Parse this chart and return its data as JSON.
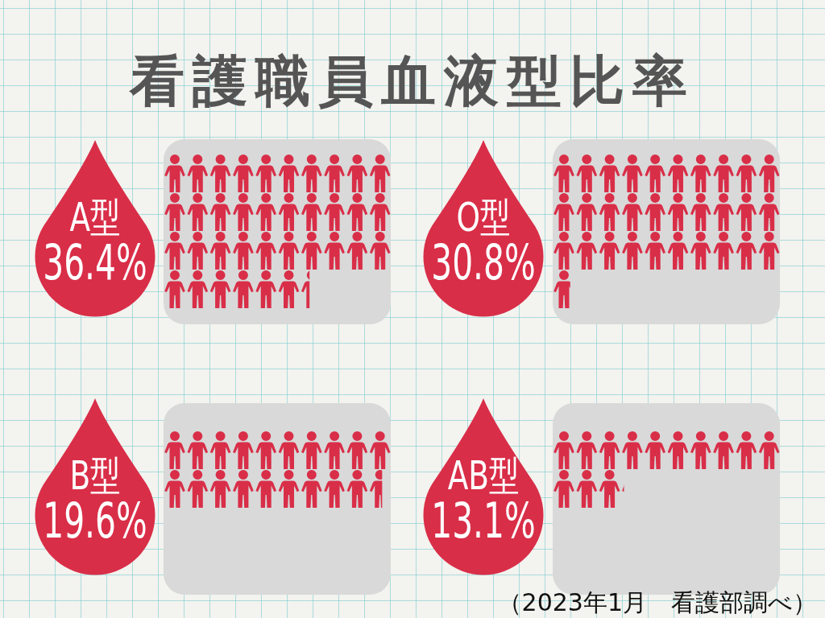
{
  "chart_data": {
    "type": "other",
    "title": "看護職員血液型比率",
    "categories": [
      "A型",
      "O型",
      "B型",
      "AB型"
    ],
    "values": [
      36.4,
      30.8,
      19.6,
      13.1
    ],
    "value_labels": [
      "36.4%",
      "30.8%",
      "19.6%",
      "13.1%"
    ],
    "color": "#d92e48",
    "annotations": [
      "（2023年1月　看護部調べ）"
    ]
  }
}
